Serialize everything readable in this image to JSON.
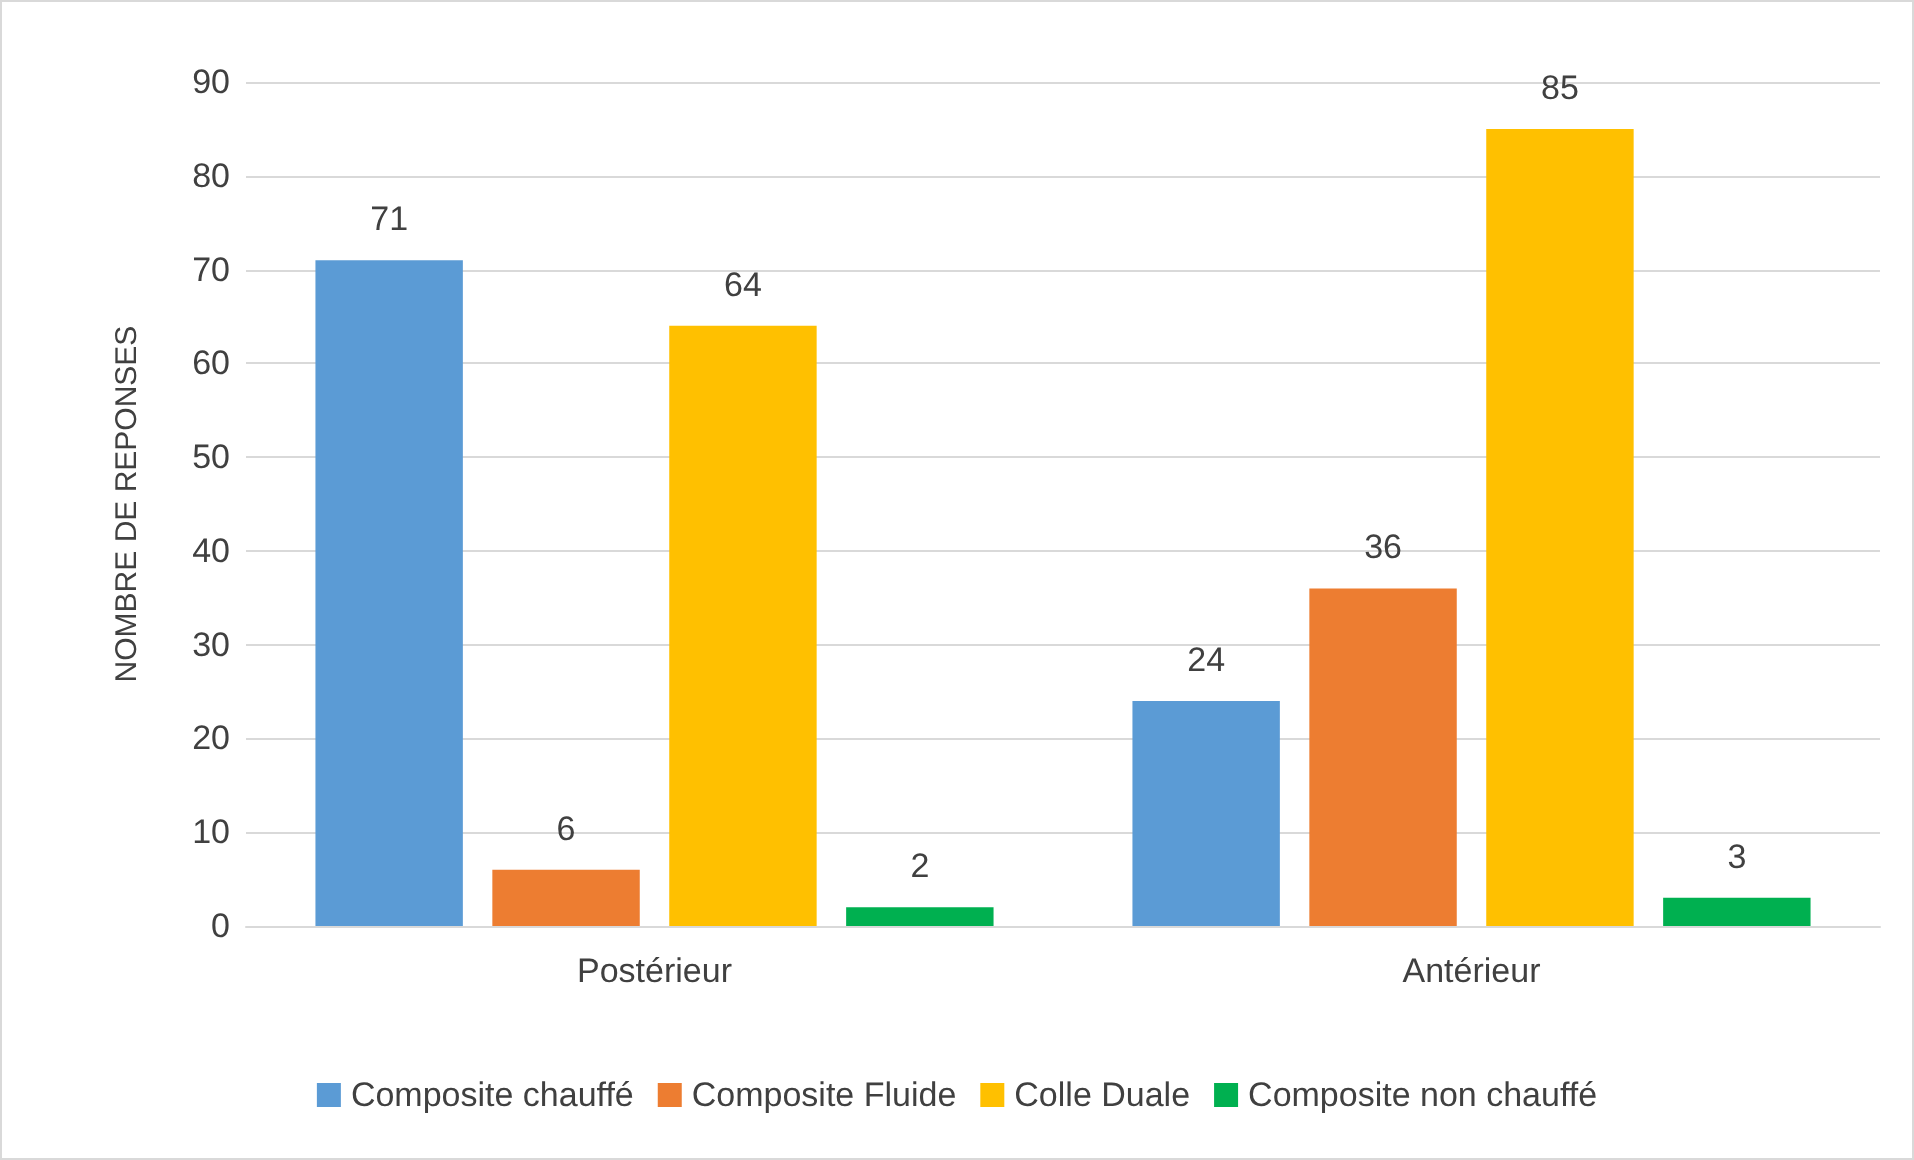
{
  "chart_data": {
    "type": "bar",
    "ylabel": "NOMBRE DE REPONSES",
    "categories": [
      "Postérieur",
      "Antérieur"
    ],
    "series": [
      {
        "name": "Composite chauffé",
        "color": "#5b9bd5",
        "values": [
          71,
          24
        ]
      },
      {
        "name": "Composite Fluide",
        "color": "#ed7d31",
        "values": [
          6,
          36
        ]
      },
      {
        "name": "Colle Duale",
        "color": "#ffc000",
        "values": [
          64,
          85
        ]
      },
      {
        "name": "Composite non chauffé",
        "color": "#00b050",
        "values": [
          2,
          3
        ]
      }
    ],
    "ylim": [
      0,
      90
    ],
    "yticks": [
      0,
      10,
      20,
      30,
      40,
      50,
      60,
      70,
      80,
      90
    ],
    "grid": "y",
    "legend": "bottom",
    "data_labels": true
  }
}
